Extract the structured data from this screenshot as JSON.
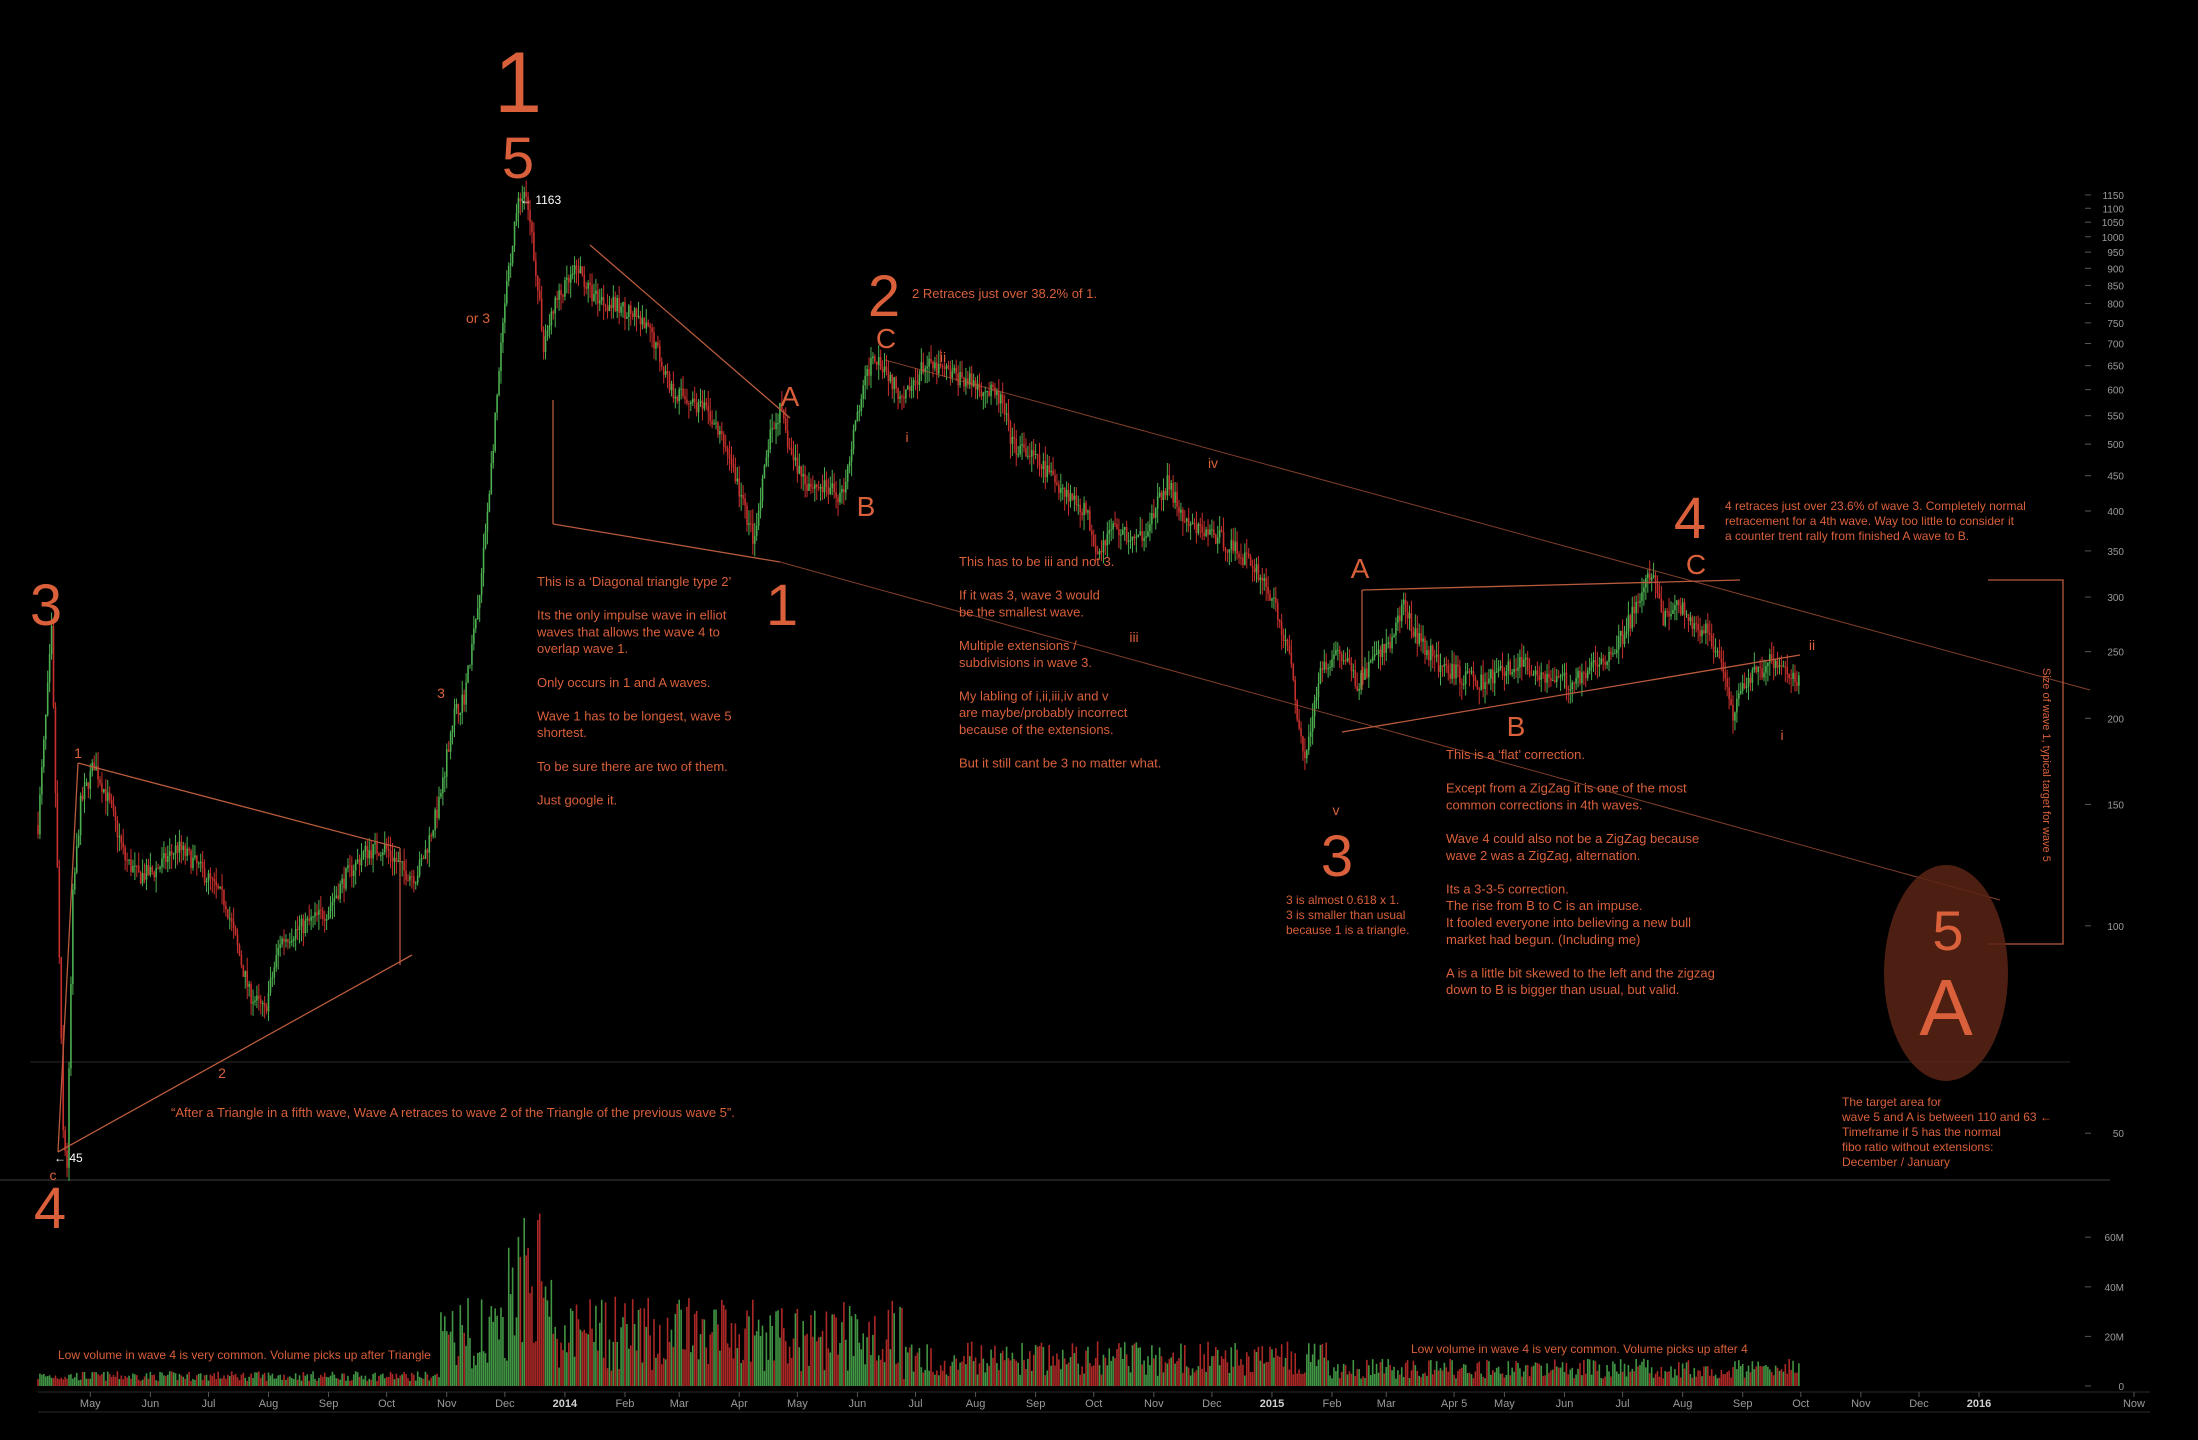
{
  "colors": {
    "background": "#000000",
    "accent": "#d9603b",
    "candle_up": "#4caf50",
    "candle_down": "#c8302d",
    "axis_text": "#9a9a9a",
    "divider": "#2a2a2a",
    "trendline": "#b85a3c"
  },
  "chart_data": {
    "type": "candlestick",
    "scale": "log",
    "ylim": [
      40,
      1250
    ],
    "y_ticks": [
      50,
      100,
      150,
      200,
      250,
      300,
      350,
      400,
      450,
      500,
      550,
      600,
      650,
      700,
      750,
      800,
      850,
      900,
      950,
      1000,
      1050,
      1100,
      1150
    ],
    "volume_ticks": [
      "0",
      "20M",
      "40M",
      "60M"
    ],
    "volume_tick_values": [
      0,
      20,
      40,
      60
    ],
    "volume_max": 75,
    "x_labels": [
      "May",
      "Jun",
      "Jul",
      "Aug",
      "Sep",
      "Oct",
      "Nov",
      "Dec",
      "2014",
      "Feb",
      "Mar",
      "Apr",
      "May",
      "Jun",
      "Jul",
      "Aug",
      "Sep",
      "Oct",
      "Nov",
      "Dec",
      "2015",
      "Feb",
      "Mar",
      "Apr 5",
      "May",
      "Jun",
      "Jul",
      "Aug",
      "Sep",
      "Oct",
      "Nov",
      "Dec",
      "2016",
      "Now"
    ],
    "x_label_days": [
      0,
      31,
      61,
      92,
      123,
      153,
      184,
      214,
      245,
      276,
      304,
      335,
      365,
      396,
      426,
      457,
      488,
      518,
      549,
      579,
      610,
      641,
      669,
      704,
      730,
      761,
      791,
      822,
      853,
      883,
      914,
      944,
      975,
      1055
    ],
    "x_day_range": [
      -27,
      1045
    ],
    "price_path": [
      [
        -27,
        140
      ],
      [
        -23,
        200
      ],
      [
        -20,
        266
      ],
      [
        -17,
        120
      ],
      [
        -14,
        50
      ],
      [
        -12,
        45
      ],
      [
        -9,
        110
      ],
      [
        -5,
        150
      ],
      [
        2,
        172
      ],
      [
        10,
        150
      ],
      [
        18,
        125
      ],
      [
        25,
        118
      ],
      [
        33,
        120
      ],
      [
        45,
        130
      ],
      [
        52,
        125
      ],
      [
        60,
        118
      ],
      [
        70,
        108
      ],
      [
        82,
        80
      ],
      [
        90,
        75
      ],
      [
        98,
        95
      ],
      [
        110,
        100
      ],
      [
        122,
        105
      ],
      [
        132,
        118
      ],
      [
        142,
        128
      ],
      [
        152,
        130
      ],
      [
        162,
        120
      ],
      [
        168,
        118
      ],
      [
        173,
        128
      ],
      [
        180,
        150
      ],
      [
        187,
        200
      ],
      [
        193,
        215
      ],
      [
        201,
        300
      ],
      [
        208,
        500
      ],
      [
        214,
        800
      ],
      [
        220,
        1100
      ],
      [
        224,
        1163
      ],
      [
        229,
        950
      ],
      [
        234,
        700
      ],
      [
        240,
        800
      ],
      [
        246,
        850
      ],
      [
        252,
        900
      ],
      [
        258,
        830
      ],
      [
        268,
        800
      ],
      [
        278,
        780
      ],
      [
        290,
        720
      ],
      [
        300,
        600
      ],
      [
        310,
        580
      ],
      [
        320,
        550
      ],
      [
        330,
        480
      ],
      [
        338,
        400
      ],
      [
        343,
        360
      ],
      [
        350,
        500
      ],
      [
        356,
        560
      ],
      [
        362,
        480
      ],
      [
        370,
        440
      ],
      [
        380,
        430
      ],
      [
        388,
        420
      ],
      [
        396,
        550
      ],
      [
        404,
        680
      ],
      [
        410,
        650
      ],
      [
        416,
        600
      ],
      [
        422,
        590
      ],
      [
        430,
        650
      ],
      [
        440,
        640
      ],
      [
        452,
        620
      ],
      [
        462,
        600
      ],
      [
        470,
        580
      ],
      [
        476,
        500
      ],
      [
        486,
        480
      ],
      [
        496,
        450
      ],
      [
        506,
        420
      ],
      [
        514,
        400
      ],
      [
        520,
        350
      ],
      [
        528,
        380
      ],
      [
        540,
        360
      ],
      [
        548,
        390
      ],
      [
        556,
        440
      ],
      [
        566,
        380
      ],
      [
        580,
        370
      ],
      [
        592,
        350
      ],
      [
        602,
        330
      ],
      [
        610,
        300
      ],
      [
        620,
        240
      ],
      [
        626,
        175
      ],
      [
        631,
        200
      ],
      [
        636,
        240
      ],
      [
        645,
        250
      ],
      [
        654,
        225
      ],
      [
        662,
        240
      ],
      [
        670,
        255
      ],
      [
        678,
        290
      ],
      [
        686,
        260
      ],
      [
        696,
        240
      ],
      [
        708,
        230
      ],
      [
        718,
        225
      ],
      [
        728,
        235
      ],
      [
        740,
        240
      ],
      [
        752,
        230
      ],
      [
        764,
        225
      ],
      [
        775,
        240
      ],
      [
        786,
        250
      ],
      [
        793,
        270
      ],
      [
        800,
        300
      ],
      [
        806,
        325
      ],
      [
        812,
        280
      ],
      [
        820,
        290
      ],
      [
        828,
        275
      ],
      [
        836,
        265
      ],
      [
        842,
        235
      ],
      [
        848,
        200
      ],
      [
        854,
        225
      ],
      [
        862,
        235
      ],
      [
        870,
        245
      ],
      [
        878,
        232
      ],
      [
        882,
        228
      ]
    ]
  },
  "wave_labels": {
    "big_1_top": "1",
    "big_5_top": "5",
    "big_3_left": "3",
    "big_4_left": "4",
    "big_1_mid": "1",
    "big_2": "2",
    "big_3_mid": "3",
    "big_4_right": "4",
    "big_5_right": "5",
    "big_A_right": "A",
    "A1": "A",
    "B1": "B",
    "C1": "C",
    "A2": "A",
    "B2": "B",
    "C2": "C",
    "or3": "or 3",
    "sub_1": "1",
    "sub_2": "2",
    "sub_3": "3",
    "c_small": "c",
    "i_1": "i",
    "ii_1": "ii",
    "iii": "iii",
    "iv": "iv",
    "v": "v",
    "i_2": "i",
    "ii_2": "ii"
  },
  "price_markers": {
    "high_label": "1163",
    "low_label": "45"
  },
  "notes": {
    "retrace2": "2 Retraces just over 38.2% of 1.",
    "diagonal": [
      "This is a ‘Diagonal triangle type 2’",
      "",
      "Its the only impulse wave in elliot",
      "waves that allows the wave 4 to",
      "overlap  wave 1.",
      "",
      "Only occurs in 1 and A waves.",
      "",
      "Wave 1 has to be longest, wave 5",
      "shortest.",
      "",
      "To be sure there are two of them.",
      "",
      "Just google it."
    ],
    "iii_note": [
      "This has to be iii and not 3.",
      "",
      "If it was 3, wave 3 would",
      "be the smallest wave.",
      "",
      "Multiple extensions /",
      "subdivisions in wave 3.",
      "",
      "My labling of i,ii,iii,iv and v",
      "are maybe/probably  incorrect",
      "because of the extensions.",
      "",
      "But it still cant be 3 no matter what."
    ],
    "three_note": [
      "3 is almost 0.618 x 1.",
      "3 is smaller than usual",
      "because 1 is a triangle."
    ],
    "flat_note": [
      "This is a ‘flat’ correction.",
      "",
      "Except from a ZigZag it is one of the most",
      "common corrections in 4th waves.",
      "",
      "Wave 4 could also not be a ZigZag because",
      "wave 2 was a ZigZag, alternation.",
      "",
      "Its a 3-3-5 correction.",
      "The rise from B to C is an impuse.",
      "It fooled everyone into believing a new bull",
      "market had begun. (Including me)",
      "",
      "A is a little bit skewed to the left and the zigzag",
      "down to B is bigger than usual, but valid."
    ],
    "four_note": [
      "4 retraces just over 23.6% of wave 3. Completely normal",
      "retracement for a 4th wave. Way too little to consider it",
      "a counter trent rally from finished A wave to B."
    ],
    "target_note": [
      "The target area for",
      "wave 5 and A is between 110 and 63 ←",
      "Timeframe if 5 has the normal",
      "fibo ratio without extensions:",
      "December / January"
    ],
    "triangle_quote": "“After a Triangle in a fifth wave, Wave A retraces to wave 2 of the Triangle of the previous wave 5”.",
    "size_wave1": "Size of wave 1, typical target for wave 5",
    "low_volume_1": "Low volume in wave 4 is very common. Volume picks up after Triangle",
    "low_volume_2": "Low volume in wave 4 is very common. Volume picks up after 4"
  }
}
